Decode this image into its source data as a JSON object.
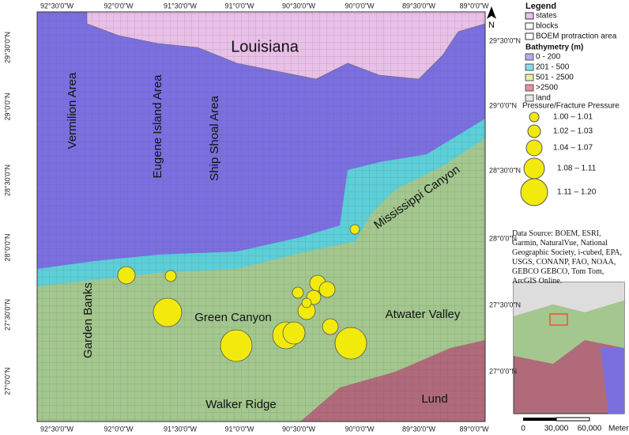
{
  "map": {
    "longitude_labels": [
      "92°30'0\"W",
      "92°0'0\"W",
      "91°30'0\"W",
      "91°0'0\"W",
      "90°30'0\"W",
      "90°0'0\"W",
      "89°30'0\"W",
      "89°0'0\"W"
    ],
    "latitude_labels": [
      "29°30'0\"N",
      "29°0'0\"N",
      "28°30'0\"N",
      "28°0'0\"N",
      "27°30'0\"N",
      "27°0'0\"N"
    ],
    "area_labels": [
      "Louisiana",
      "Vermilion Area",
      "Eugene Island Area",
      "Ship Shoal Area",
      "Mississippi Canyon",
      "Garden Banks",
      "Green Canyon",
      "Atwater Valley",
      "Walker Ridge",
      "Lund"
    ],
    "north": "N"
  },
  "legend": {
    "title": "Legend",
    "layers": [
      "states",
      "blocks",
      "BOEM protraction area"
    ],
    "bathymetry_title": "Bathymetry (m)",
    "bathymetry": [
      "0 - 200",
      "201 - 500",
      "501 - 2500",
      ">2500",
      "land"
    ],
    "pressure_title": "Pressure/Fracture Pressure",
    "pressure": [
      "1.00 – 1.01",
      "1.02 – 1.03",
      "1.04 – 1.07",
      "1.08 – 1.11",
      "1.11 – 1.20"
    ]
  },
  "source": "Data Source: BOEM, ESRI, Garmin, NaturalVue, National Geographic Society, i-cubed, EPA, USGS, CONANP, FAO, NOAA, GEBCO GEBCO, Tom Tom, ArcGIS Online.",
  "scale": [
    "0",
    "30,000",
    "60,000",
    "Meters"
  ]
}
